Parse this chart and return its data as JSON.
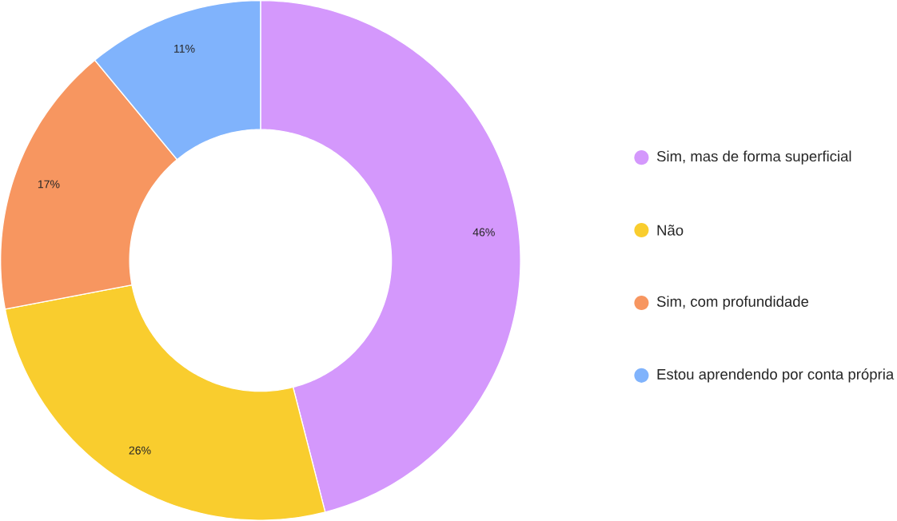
{
  "chart_data": {
    "type": "donut",
    "categories": [
      "Sim, mas de forma superficial",
      "Não",
      "Sim, com profundidade",
      "Estou aprendendo por conta própria"
    ],
    "values": [
      46,
      26,
      17,
      11
    ],
    "colors": [
      "#d498fc",
      "#f9cd2e",
      "#f79660",
      "#80b3fc"
    ],
    "value_labels": [
      "46%",
      "26%",
      "17%",
      "11%"
    ],
    "legend": "right"
  }
}
